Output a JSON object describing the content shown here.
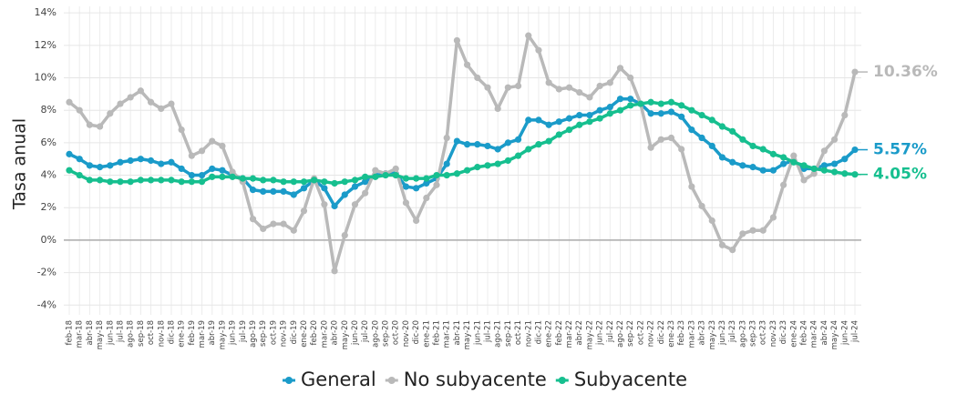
{
  "chart_data": {
    "type": "line",
    "y_label": "Tasa anual",
    "categories": [
      "feb-18",
      "mar-18",
      "abr-18",
      "may-18",
      "jun-18",
      "jul-18",
      "ago-18",
      "sep-18",
      "oct-18",
      "nov-18",
      "dic-18",
      "ene-19",
      "feb-19",
      "mar-19",
      "abr-19",
      "may-19",
      "jun-19",
      "jul-19",
      "ago-19",
      "sep-19",
      "oct-19",
      "nov-19",
      "dic-19",
      "ene-20",
      "feb-20",
      "mar-20",
      "abr-20",
      "may-20",
      "jun-20",
      "jul-20",
      "ago-20",
      "sep-20",
      "oct-20",
      "nov-20",
      "dic-20",
      "ene-21",
      "feb-21",
      "mar-21",
      "abr-21",
      "may-21",
      "jun-21",
      "jul-21",
      "ago-21",
      "sep-21",
      "oct-21",
      "nov-21",
      "dic-21",
      "ene-22",
      "feb-22",
      "mar-22",
      "abr-22",
      "may-22",
      "jun-22",
      "jul-22",
      "ago-22",
      "sep-22",
      "oct-22",
      "nov-22",
      "dic-22",
      "ene-23",
      "feb-23",
      "mar-23",
      "abr-23",
      "may-23",
      "jun-23",
      "jul-23",
      "ago-23",
      "sep-23",
      "oct-23",
      "nov-23",
      "dic-23",
      "ene-24",
      "feb-24",
      "mar-24",
      "abr-24",
      "may-24",
      "jun-24",
      "jul-24"
    ],
    "series": [
      {
        "name": "General",
        "color": "#1a9bc9",
        "values": [
          5.3,
          5.0,
          4.6,
          4.5,
          4.6,
          4.8,
          4.9,
          5.0,
          4.9,
          4.7,
          4.8,
          4.4,
          4.0,
          4.0,
          4.4,
          4.3,
          4.0,
          3.8,
          3.1,
          3.0,
          3.0,
          3.0,
          2.8,
          3.2,
          3.7,
          3.2,
          2.1,
          2.8,
          3.3,
          3.6,
          4.0,
          4.1,
          4.1,
          3.3,
          3.2,
          3.5,
          3.8,
          4.7,
          6.1,
          5.9,
          5.9,
          5.8,
          5.6,
          6.0,
          6.2,
          7.4,
          7.4,
          7.1,
          7.3,
          7.5,
          7.7,
          7.7,
          8.0,
          8.2,
          8.7,
          8.7,
          8.4,
          7.8,
          7.8,
          7.9,
          7.6,
          6.8,
          6.3,
          5.8,
          5.1,
          4.8,
          4.6,
          4.5,
          4.3,
          4.3,
          4.7,
          4.9,
          4.4,
          4.4,
          4.6,
          4.7,
          5.0,
          5.57
        ],
        "value_labels": [
          null,
          null,
          null,
          null,
          null,
          null,
          null,
          null,
          null,
          null,
          null,
          null,
          null,
          null,
          null,
          null,
          null,
          null,
          null,
          null,
          null,
          null,
          null,
          null,
          null,
          null,
          null,
          null,
          null,
          null,
          null,
          null,
          null,
          null,
          null,
          null,
          null,
          null,
          null,
          null,
          null,
          null,
          null,
          null,
          null,
          null,
          null,
          null,
          null,
          null,
          null,
          null,
          null,
          null,
          null,
          null,
          null,
          null,
          null,
          null,
          null,
          null,
          null,
          null,
          null,
          null,
          null,
          null,
          null,
          null,
          null,
          null,
          null,
          null,
          null,
          null,
          null,
          "5.57%"
        ]
      },
      {
        "name": "No subyacente",
        "color": "#b9b9b9",
        "values": [
          8.5,
          8.0,
          7.1,
          7.0,
          7.8,
          8.4,
          8.8,
          9.2,
          8.5,
          8.1,
          8.4,
          6.8,
          5.2,
          5.5,
          6.1,
          5.8,
          4.2,
          3.6,
          1.3,
          0.7,
          1.0,
          1.0,
          0.6,
          1.8,
          3.8,
          2.2,
          -1.9,
          0.3,
          2.2,
          2.9,
          4.3,
          4.1,
          4.4,
          2.3,
          1.2,
          2.6,
          3.4,
          6.3,
          12.3,
          10.8,
          10.0,
          9.4,
          8.1,
          9.4,
          9.5,
          12.6,
          11.7,
          9.7,
          9.3,
          9.4,
          9.1,
          8.8,
          9.5,
          9.7,
          10.6,
          10.0,
          8.4,
          5.7,
          6.2,
          6.3,
          5.6,
          3.3,
          2.1,
          1.2,
          -0.3,
          -0.6,
          0.4,
          0.6,
          0.6,
          1.4,
          3.4,
          5.2,
          3.7,
          4.1,
          5.5,
          6.2,
          7.7,
          10.36
        ],
        "value_labels": [
          null,
          null,
          null,
          null,
          null,
          null,
          null,
          null,
          null,
          null,
          null,
          null,
          null,
          null,
          null,
          null,
          null,
          null,
          null,
          null,
          null,
          null,
          null,
          null,
          null,
          null,
          null,
          null,
          null,
          null,
          null,
          null,
          null,
          null,
          null,
          null,
          null,
          null,
          null,
          null,
          null,
          null,
          null,
          null,
          null,
          null,
          null,
          null,
          null,
          null,
          null,
          null,
          null,
          null,
          null,
          null,
          null,
          null,
          null,
          null,
          null,
          null,
          null,
          null,
          null,
          null,
          null,
          null,
          null,
          null,
          null,
          null,
          null,
          null,
          null,
          null,
          null,
          "10.36%"
        ]
      },
      {
        "name": "Subyacente",
        "color": "#16bf8f",
        "values": [
          4.3,
          4.0,
          3.7,
          3.7,
          3.6,
          3.6,
          3.6,
          3.7,
          3.7,
          3.7,
          3.7,
          3.6,
          3.6,
          3.6,
          3.9,
          3.9,
          3.9,
          3.8,
          3.8,
          3.7,
          3.7,
          3.6,
          3.6,
          3.6,
          3.7,
          3.6,
          3.5,
          3.6,
          3.7,
          3.9,
          3.9,
          4.0,
          4.0,
          3.8,
          3.8,
          3.8,
          4.0,
          4.0,
          4.1,
          4.3,
          4.5,
          4.6,
          4.7,
          4.9,
          5.2,
          5.6,
          5.9,
          6.1,
          6.5,
          6.8,
          7.1,
          7.3,
          7.5,
          7.8,
          8.0,
          8.3,
          8.4,
          8.5,
          8.4,
          8.5,
          8.3,
          8.0,
          7.7,
          7.4,
          7.0,
          6.7,
          6.2,
          5.8,
          5.6,
          5.3,
          5.1,
          4.8,
          4.6,
          4.4,
          4.3,
          4.2,
          4.1,
          4.05
        ],
        "value_labels": [
          null,
          null,
          null,
          null,
          null,
          null,
          null,
          null,
          null,
          null,
          null,
          null,
          null,
          null,
          null,
          null,
          null,
          null,
          null,
          null,
          null,
          null,
          null,
          null,
          null,
          null,
          null,
          null,
          null,
          null,
          null,
          null,
          null,
          null,
          null,
          null,
          null,
          null,
          null,
          null,
          null,
          null,
          null,
          null,
          null,
          null,
          null,
          null,
          null,
          null,
          null,
          null,
          null,
          null,
          null,
          null,
          null,
          null,
          null,
          null,
          null,
          null,
          null,
          null,
          null,
          null,
          null,
          null,
          null,
          null,
          null,
          null,
          null,
          null,
          null,
          null,
          null,
          "4.05%"
        ]
      }
    ],
    "ylim": [
      -4.6,
      14.4
    ],
    "yticks": [
      {
        "value": -4,
        "label": "-4%"
      },
      {
        "value": -2,
        "label": "-2%"
      },
      {
        "value": 0,
        "label": "0%"
      },
      {
        "value": 2,
        "label": "2%"
      },
      {
        "value": 4,
        "label": "4%"
      },
      {
        "value": 6,
        "label": "6%"
      },
      {
        "value": 8,
        "label": "8%"
      },
      {
        "value": 10,
        "label": "10%"
      },
      {
        "value": 12,
        "label": "12%"
      },
      {
        "value": 14,
        "label": "14%"
      }
    ],
    "grid": true,
    "legend": "bottom"
  }
}
